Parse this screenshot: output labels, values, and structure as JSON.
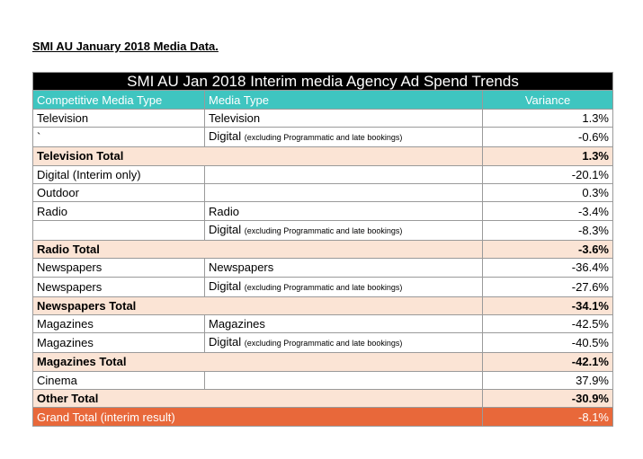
{
  "heading": "SMI AU January 2018 Media Data.",
  "table": {
    "title": "SMI AU Jan 2018 Interim media Agency Ad Spend Trends",
    "headers": {
      "competitive": "Competitive Media Type",
      "media": "Media Type",
      "variance": "Variance"
    },
    "rows": [
      {
        "type": "data",
        "competitive": "Television",
        "media": "Television",
        "media_note": "",
        "variance": "1.3%"
      },
      {
        "type": "data",
        "competitive": "`",
        "media": "Digital",
        "media_note": "(excluding Programmatic and late bookings)",
        "variance": "-0.6%"
      },
      {
        "type": "total",
        "label": "Television Total",
        "variance": "1.3%"
      },
      {
        "type": "data",
        "competitive": "Digital (Interim only)",
        "media": "",
        "media_note": "",
        "variance": "-20.1%"
      },
      {
        "type": "data",
        "competitive": "Outdoor",
        "media": "",
        "media_note": "",
        "variance": "0.3%"
      },
      {
        "type": "data",
        "competitive": "Radio",
        "media": "Radio",
        "media_note": "",
        "variance": "-3.4%"
      },
      {
        "type": "data",
        "competitive": "",
        "media": "Digital",
        "media_note": "(excluding Programmatic and late bookings)",
        "variance": "-8.3%"
      },
      {
        "type": "total",
        "label": "Radio Total",
        "variance": "-3.6%"
      },
      {
        "type": "data",
        "competitive": "Newspapers",
        "media": "Newspapers",
        "media_note": "",
        "variance": "-36.4%"
      },
      {
        "type": "data",
        "competitive": "Newspapers",
        "media": "Digital",
        "media_note": "(excluding Programmatic and late bookings)",
        "variance": "-27.6%"
      },
      {
        "type": "total",
        "label": "Newspapers Total",
        "variance": "-34.1%"
      },
      {
        "type": "data",
        "competitive": "Magazines",
        "media": "Magazines",
        "media_note": "",
        "variance": "-42.5%"
      },
      {
        "type": "data",
        "competitive": "Magazines",
        "media": "Digital",
        "media_note": "(excluding Programmatic and late bookings)",
        "variance": "-40.5%"
      },
      {
        "type": "total",
        "label": "Magazines Total",
        "variance": "-42.1%"
      },
      {
        "type": "data",
        "competitive": "Cinema",
        "media": "",
        "media_note": "",
        "variance": "37.9%"
      },
      {
        "type": "total",
        "label": "Other Total",
        "variance": "-30.9%"
      },
      {
        "type": "grand",
        "label": "Grand Total (interim result)",
        "variance": "-8.1%"
      }
    ]
  },
  "colors": {
    "title_bg": "#000000",
    "header_bg": "#3fc5c0",
    "total_bg": "#fbe4d5",
    "grand_bg": "#e8683a"
  }
}
